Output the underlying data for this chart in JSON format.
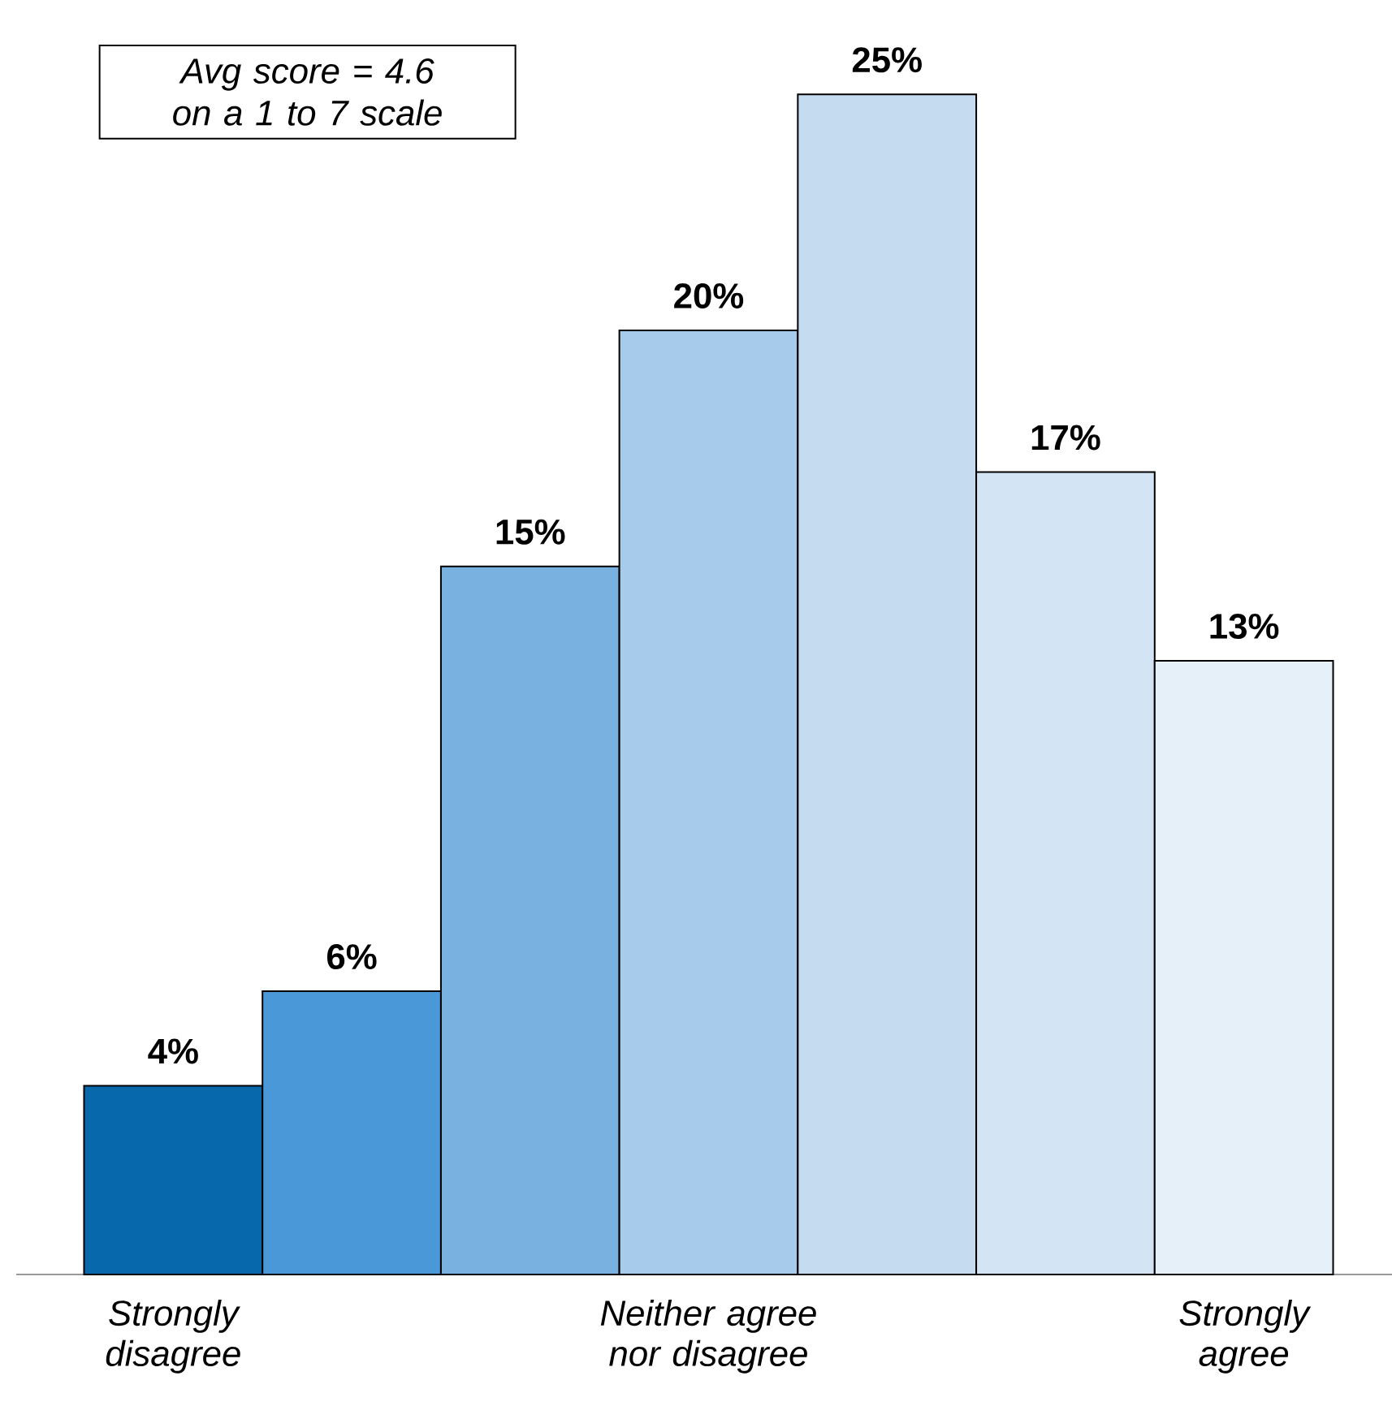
{
  "chart_data": {
    "type": "bar",
    "categories": [
      "Strongly disagree",
      null,
      null,
      "Neither agree nor disagree",
      null,
      null,
      "Strongly agree"
    ],
    "values": [
      4,
      6,
      15,
      20,
      25,
      17,
      13
    ],
    "value_labels": [
      "4%",
      "6%",
      "15%",
      "20%",
      "25%",
      "17%",
      "13%"
    ],
    "colors": [
      "#0868ac",
      "#4a98d8",
      "#79b2e0",
      "#a6cbeb",
      "#c4dbf0",
      "#d3e4f4",
      "#e6f0f9"
    ],
    "annotations": [
      "Avg score = 4.6 on a 1 to 7 scale"
    ]
  }
}
